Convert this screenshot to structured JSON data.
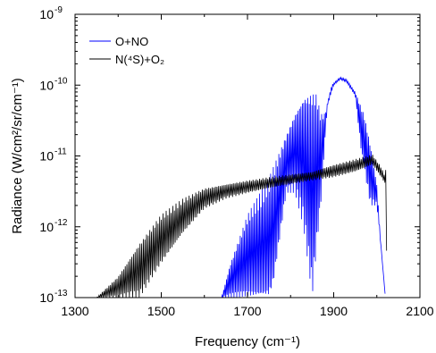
{
  "chart_data": {
    "type": "line",
    "xlabel": "Frequency (cm⁻¹)",
    "ylabel": "Radiance (W/cm²/sr/cm⁻¹)",
    "xlim": [
      1300,
      2100
    ],
    "ylim": [
      1e-13,
      1e-09
    ],
    "yscale": "log",
    "grid": false,
    "legend_position": "top-left",
    "x_ticks": [
      1300,
      1500,
      1700,
      1900,
      2100
    ],
    "x_tick_labels": [
      "1300",
      "1500",
      "1700",
      "1900",
      "2100"
    ],
    "y_ticks": [
      1e-13,
      1e-12,
      1e-11,
      1e-10,
      1e-09
    ],
    "y_tick_labels": [
      {
        "base": "10",
        "exp": "-13"
      },
      {
        "base": "10",
        "exp": "-12"
      },
      {
        "base": "10",
        "exp": "-11"
      },
      {
        "base": "10",
        "exp": "-10"
      },
      {
        "base": "10",
        "exp": "-9"
      }
    ],
    "series": [
      {
        "name": "O+NO",
        "color": "#0000ff",
        "line_style": "dense rotational bands, deep oscillations",
        "upper_envelope": [
          [
            1640,
            1e-13
          ],
          [
            1660,
            3e-13
          ],
          [
            1700,
            1.5e-12
          ],
          [
            1750,
            5e-12
          ],
          [
            1790,
            2e-11
          ],
          [
            1810,
            4e-11
          ],
          [
            1830,
            7e-11
          ],
          [
            1850,
            8.5e-11
          ],
          [
            1860,
            8e-11
          ],
          [
            1870,
            4e-11
          ],
          [
            1880,
            4e-11
          ],
          [
            1895,
            1e-10
          ],
          [
            1915,
            1.3e-10
          ],
          [
            1930,
            1.2e-10
          ],
          [
            1950,
            8e-11
          ],
          [
            1970,
            4e-11
          ],
          [
            1985,
            1.5e-11
          ],
          [
            2000,
            4e-12
          ],
          [
            2010,
            5e-13
          ],
          [
            2020,
            1e-13
          ]
        ],
        "lower_envelope": [
          [
            1640,
            1e-13
          ],
          [
            1700,
            1e-13
          ],
          [
            1750,
            1e-13
          ],
          [
            1760,
            1.5e-13
          ],
          [
            1790,
            3e-12
          ],
          [
            1810,
            3e-12
          ],
          [
            1830,
            1e-12
          ],
          [
            1850,
            1e-13
          ],
          [
            1870,
            2e-12
          ],
          [
            1885,
            5e-11
          ],
          [
            1900,
            1e-10
          ],
          [
            1915,
            1.2e-10
          ],
          [
            1930,
            1.1e-10
          ],
          [
            1950,
            7e-11
          ],
          [
            1965,
            1e-11
          ],
          [
            1985,
            2e-12
          ],
          [
            2000,
            2e-12
          ],
          [
            2010,
            5e-13
          ],
          [
            2020,
            1e-13
          ]
        ]
      },
      {
        "name": "N(⁴S)+O₂",
        "color": "#000000",
        "line_style": "noisy rotational structure",
        "upper_envelope": [
          [
            1350,
            1e-13
          ],
          [
            1400,
            2e-13
          ],
          [
            1450,
            6e-13
          ],
          [
            1500,
            1.5e-12
          ],
          [
            1550,
            2.5e-12
          ],
          [
            1600,
            3.5e-12
          ],
          [
            1650,
            4e-12
          ],
          [
            1700,
            4.5e-12
          ],
          [
            1750,
            5e-12
          ],
          [
            1800,
            5.5e-12
          ],
          [
            1850,
            6e-12
          ],
          [
            1900,
            7.5e-12
          ],
          [
            1950,
            9e-12
          ],
          [
            1990,
            1.05e-11
          ],
          [
            2010,
            7e-12
          ],
          [
            2020,
            5e-12
          ],
          [
            2022,
            1e-11
          ],
          [
            2023,
            1e-13
          ]
        ],
        "lower_envelope": [
          [
            1350,
            1e-13
          ],
          [
            1400,
            1e-13
          ],
          [
            1450,
            1e-13
          ],
          [
            1500,
            3e-13
          ],
          [
            1550,
            8e-13
          ],
          [
            1600,
            1.8e-12
          ],
          [
            1650,
            2.5e-12
          ],
          [
            1700,
            3e-12
          ],
          [
            1750,
            3.5e-12
          ],
          [
            1800,
            4e-12
          ],
          [
            1850,
            4.5e-12
          ],
          [
            1900,
            5e-12
          ],
          [
            1950,
            6e-12
          ],
          [
            1990,
            7.5e-12
          ],
          [
            2010,
            5e-12
          ],
          [
            2020,
            4e-12
          ],
          [
            2022,
            4.5e-12
          ],
          [
            2023,
            1e-13
          ]
        ]
      }
    ]
  }
}
